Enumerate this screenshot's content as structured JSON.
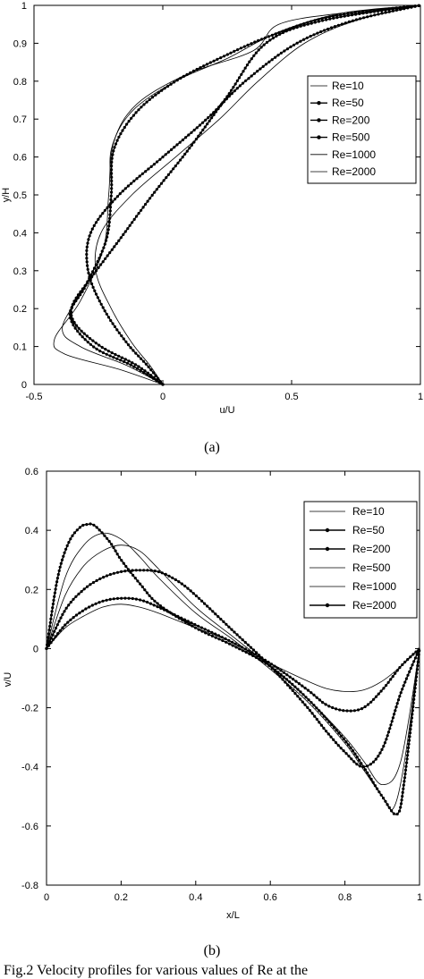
{
  "panel_labels": [
    "(a)",
    "(b)"
  ],
  "caption": "Fig.2 Velocity profiles for various values of Re at the",
  "chart_data": [
    {
      "type": "line",
      "title": "",
      "xlabel": "u/U",
      "ylabel": "y/H",
      "xlim": [
        -0.5,
        1
      ],
      "ylim": [
        0,
        1
      ],
      "xticks": [
        -0.5,
        0,
        0.5,
        1
      ],
      "xticklabels": [
        "-0.5",
        "0",
        "0.5",
        "1"
      ],
      "yticks": [
        0,
        0.1,
        0.2,
        0.3,
        0.4,
        0.5,
        0.6,
        0.7,
        0.8,
        0.9,
        1
      ],
      "yticklabels": [
        "0",
        "0.1",
        "0.2",
        "0.3",
        "0.4",
        "0.5",
        "0.6",
        "0.7",
        "0.8",
        "0.9",
        "1"
      ],
      "grid": false,
      "legend_position": "top-right",
      "series": [
        {
          "name": "Re=10",
          "marker": false,
          "x": [
            0,
            -0.05,
            -0.12,
            -0.2,
            -0.26,
            -0.24,
            -0.12,
            0.05,
            0.22,
            0.37,
            0.55,
            0.75,
            1
          ],
          "y": [
            0,
            0.05,
            0.11,
            0.2,
            0.3,
            0.4,
            0.5,
            0.6,
            0.7,
            0.8,
            0.9,
            0.96,
            1
          ]
        },
        {
          "name": "Re=50",
          "marker": true,
          "x": [
            0,
            -0.06,
            -0.14,
            -0.23,
            -0.29,
            -0.28,
            -0.17,
            0.0,
            0.17,
            0.32,
            0.52,
            0.74,
            1
          ],
          "y": [
            0,
            0.05,
            0.11,
            0.2,
            0.3,
            0.4,
            0.5,
            0.6,
            0.7,
            0.8,
            0.9,
            0.96,
            1
          ]
        },
        {
          "name": "Re=200",
          "marker": true,
          "x": [
            0,
            -0.1,
            -0.24,
            -0.34,
            -0.35,
            -0.28,
            -0.17,
            -0.04,
            0.1,
            0.25,
            0.4,
            0.62,
            1
          ],
          "y": [
            0,
            0.05,
            0.1,
            0.16,
            0.21,
            0.28,
            0.38,
            0.5,
            0.62,
            0.76,
            0.9,
            0.96,
            1
          ]
        },
        {
          "name": "Re=500",
          "marker": true,
          "x": [
            0,
            -0.12,
            -0.27,
            -0.36,
            -0.3,
            -0.22,
            -0.2,
            -0.19,
            -0.1,
            0.05,
            0.25,
            0.42,
            0.65,
            1
          ],
          "y": [
            0,
            0.05,
            0.1,
            0.18,
            0.26,
            0.38,
            0.5,
            0.62,
            0.72,
            0.8,
            0.87,
            0.92,
            0.97,
            1
          ]
        },
        {
          "name": "Re=1000",
          "marker": false,
          "x": [
            0,
            -0.14,
            -0.32,
            -0.39,
            -0.3,
            -0.22,
            -0.2,
            -0.2,
            -0.12,
            0.05,
            0.25,
            0.45,
            0.7,
            1
          ],
          "y": [
            0,
            0.05,
            0.1,
            0.15,
            0.26,
            0.38,
            0.5,
            0.62,
            0.72,
            0.8,
            0.86,
            0.93,
            0.98,
            1
          ]
        },
        {
          "name": "Re=2000",
          "marker": false,
          "x": [
            0,
            -0.17,
            -0.38,
            -0.42,
            -0.32,
            -0.23,
            -0.21,
            -0.19,
            -0.1,
            0.1,
            0.35,
            0.45,
            0.7,
            1
          ],
          "y": [
            0,
            0.04,
            0.08,
            0.12,
            0.22,
            0.36,
            0.5,
            0.64,
            0.74,
            0.82,
            0.88,
            0.95,
            0.98,
            1
          ]
        }
      ]
    },
    {
      "type": "line",
      "title": "",
      "xlabel": "x/L",
      "ylabel": "v/U",
      "xlim": [
        0,
        1
      ],
      "ylim": [
        -0.8,
        0.6
      ],
      "xticks": [
        0,
        0.2,
        0.4,
        0.6,
        0.8,
        1
      ],
      "xticklabels": [
        "0",
        "0.2",
        "0.4",
        "0.6",
        "0.8",
        "1"
      ],
      "yticks": [
        -0.8,
        -0.6,
        -0.4,
        -0.2,
        0,
        0.2,
        0.4,
        0.6
      ],
      "yticklabels": [
        "-0.8",
        "-0.6",
        "-0.4",
        "-0.2",
        "0",
        "0.2",
        "0.4",
        "0.6"
      ],
      "grid": false,
      "legend_position": "top-right",
      "series": [
        {
          "name": "Re=10",
          "marker": false,
          "x": [
            0,
            0.05,
            0.1,
            0.15,
            0.2,
            0.25,
            0.3,
            0.4,
            0.5,
            0.6,
            0.7,
            0.75,
            0.8,
            0.85,
            0.9,
            0.95,
            1
          ],
          "y": [
            0,
            0.07,
            0.11,
            0.14,
            0.15,
            0.14,
            0.12,
            0.07,
            0.02,
            -0.05,
            -0.11,
            -0.135,
            -0.145,
            -0.14,
            -0.11,
            -0.06,
            0
          ]
        },
        {
          "name": "Re=50",
          "marker": true,
          "x": [
            0,
            0.05,
            0.1,
            0.15,
            0.2,
            0.25,
            0.3,
            0.4,
            0.5,
            0.6,
            0.7,
            0.75,
            0.8,
            0.85,
            0.9,
            0.95,
            1
          ],
          "y": [
            0,
            0.08,
            0.13,
            0.16,
            0.17,
            0.165,
            0.14,
            0.08,
            0.02,
            -0.05,
            -0.14,
            -0.19,
            -0.21,
            -0.2,
            -0.14,
            -0.06,
            0
          ]
        },
        {
          "name": "Re=200",
          "marker": true,
          "x": [
            0,
            0.05,
            0.1,
            0.15,
            0.2,
            0.25,
            0.3,
            0.35,
            0.4,
            0.5,
            0.6,
            0.7,
            0.75,
            0.8,
            0.85,
            0.9,
            0.95,
            1
          ],
          "y": [
            0,
            0.13,
            0.2,
            0.24,
            0.26,
            0.265,
            0.26,
            0.23,
            0.18,
            0.06,
            -0.06,
            -0.2,
            -0.28,
            -0.35,
            -0.4,
            -0.34,
            -0.15,
            0
          ]
        },
        {
          "name": "Re=500",
          "marker": false,
          "x": [
            0,
            0.05,
            0.1,
            0.15,
            0.2,
            0.25,
            0.3,
            0.4,
            0.5,
            0.6,
            0.7,
            0.8,
            0.85,
            0.9,
            0.95,
            1
          ],
          "y": [
            0,
            0.18,
            0.28,
            0.33,
            0.35,
            0.33,
            0.27,
            0.14,
            0.04,
            -0.06,
            -0.17,
            -0.3,
            -0.38,
            -0.46,
            -0.38,
            0
          ]
        },
        {
          "name": "Re=1000",
          "marker": false,
          "x": [
            0,
            0.05,
            0.1,
            0.15,
            0.2,
            0.25,
            0.3,
            0.4,
            0.5,
            0.6,
            0.7,
            0.8,
            0.85,
            0.9,
            0.93,
            0.96,
            1
          ],
          "y": [
            0,
            0.24,
            0.35,
            0.39,
            0.37,
            0.31,
            0.24,
            0.12,
            0.03,
            -0.07,
            -0.18,
            -0.32,
            -0.41,
            -0.5,
            -0.54,
            -0.38,
            0
          ]
        },
        {
          "name": "Re=2000",
          "marker": true,
          "x": [
            0,
            0.03,
            0.06,
            0.09,
            0.11,
            0.13,
            0.17,
            0.2,
            0.25,
            0.3,
            0.4,
            0.5,
            0.6,
            0.7,
            0.8,
            0.85,
            0.9,
            0.94,
            0.96,
            1
          ],
          "y": [
            0,
            0.24,
            0.36,
            0.41,
            0.42,
            0.415,
            0.36,
            0.3,
            0.22,
            0.15,
            0.07,
            0.01,
            -0.06,
            -0.17,
            -0.31,
            -0.4,
            -0.5,
            -0.56,
            -0.44,
            0
          ]
        }
      ]
    }
  ]
}
